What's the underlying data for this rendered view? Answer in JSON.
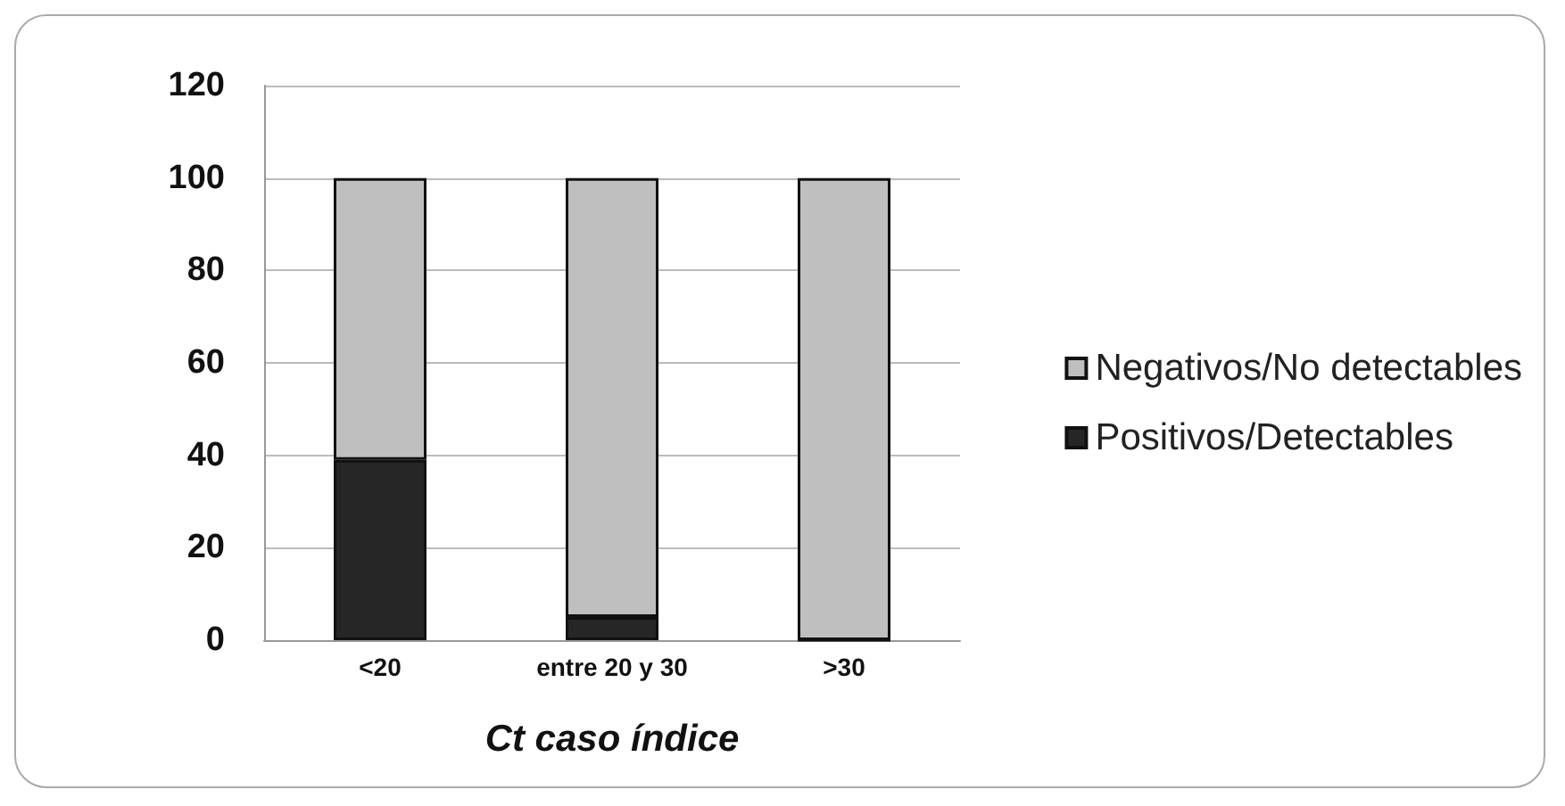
{
  "chart_data": {
    "type": "bar",
    "stacked": true,
    "xlabel": "Ct caso índice",
    "categories": [
      "<20",
      "entre 20 y 30",
      ">30"
    ],
    "series": [
      {
        "name": "Positivos/Detectables",
        "color": "#262626",
        "values": [
          39,
          5,
          0
        ]
      },
      {
        "name": "Negativos/No detectables",
        "color": "#bfbfbf",
        "values": [
          61,
          95,
          100
        ]
      }
    ],
    "ylim": [
      0,
      120
    ],
    "yticks": [
      0,
      20,
      40,
      60,
      80,
      100,
      120
    ],
    "grid": "y",
    "legend": "right"
  }
}
